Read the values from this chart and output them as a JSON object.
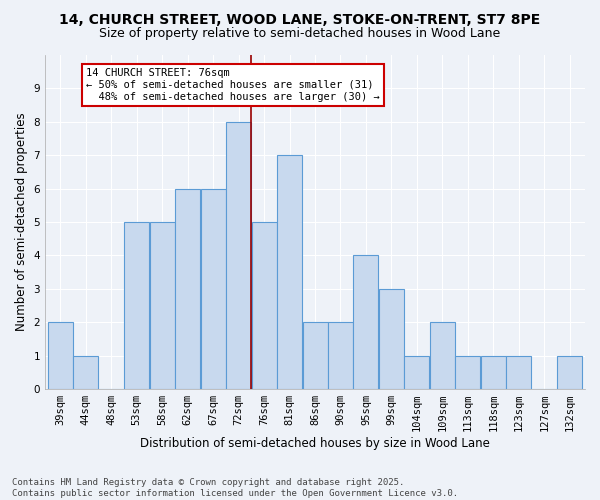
{
  "title1": "14, CHURCH STREET, WOOD LANE, STOKE-ON-TRENT, ST7 8PE",
  "title2": "Size of property relative to semi-detached houses in Wood Lane",
  "xlabel": "Distribution of semi-detached houses by size in Wood Lane",
  "ylabel": "Number of semi-detached properties",
  "categories": [
    "39sqm",
    "44sqm",
    "48sqm",
    "53sqm",
    "58sqm",
    "62sqm",
    "67sqm",
    "72sqm",
    "76sqm",
    "81sqm",
    "86sqm",
    "90sqm",
    "95sqm",
    "99sqm",
    "104sqm",
    "109sqm",
    "113sqm",
    "118sqm",
    "123sqm",
    "127sqm",
    "132sqm"
  ],
  "values": [
    2,
    1,
    0,
    5,
    5,
    6,
    6,
    8,
    5,
    7,
    2,
    2,
    4,
    3,
    1,
    2,
    1,
    1,
    1,
    0,
    1
  ],
  "bar_color": "#c8d9ee",
  "bar_edge_color": "#5b9bd5",
  "vline_after_index": 7,
  "annotation_text": "14 CHURCH STREET: 76sqm\n← 50% of semi-detached houses are smaller (31)\n  48% of semi-detached houses are larger (30) →",
  "annotation_box_color": "#ffffff",
  "annotation_box_edge_color": "#cc0000",
  "vline_color": "#990000",
  "ylim": [
    0,
    10
  ],
  "yticks": [
    0,
    1,
    2,
    3,
    4,
    5,
    6,
    7,
    8,
    9
  ],
  "background_color": "#eef2f8",
  "grid_color": "#ffffff",
  "footer": "Contains HM Land Registry data © Crown copyright and database right 2025.\nContains public sector information licensed under the Open Government Licence v3.0.",
  "title_fontsize": 10,
  "subtitle_fontsize": 9,
  "axis_label_fontsize": 8.5,
  "tick_fontsize": 7.5,
  "footer_fontsize": 6.5,
  "annotation_fontsize": 7.5
}
